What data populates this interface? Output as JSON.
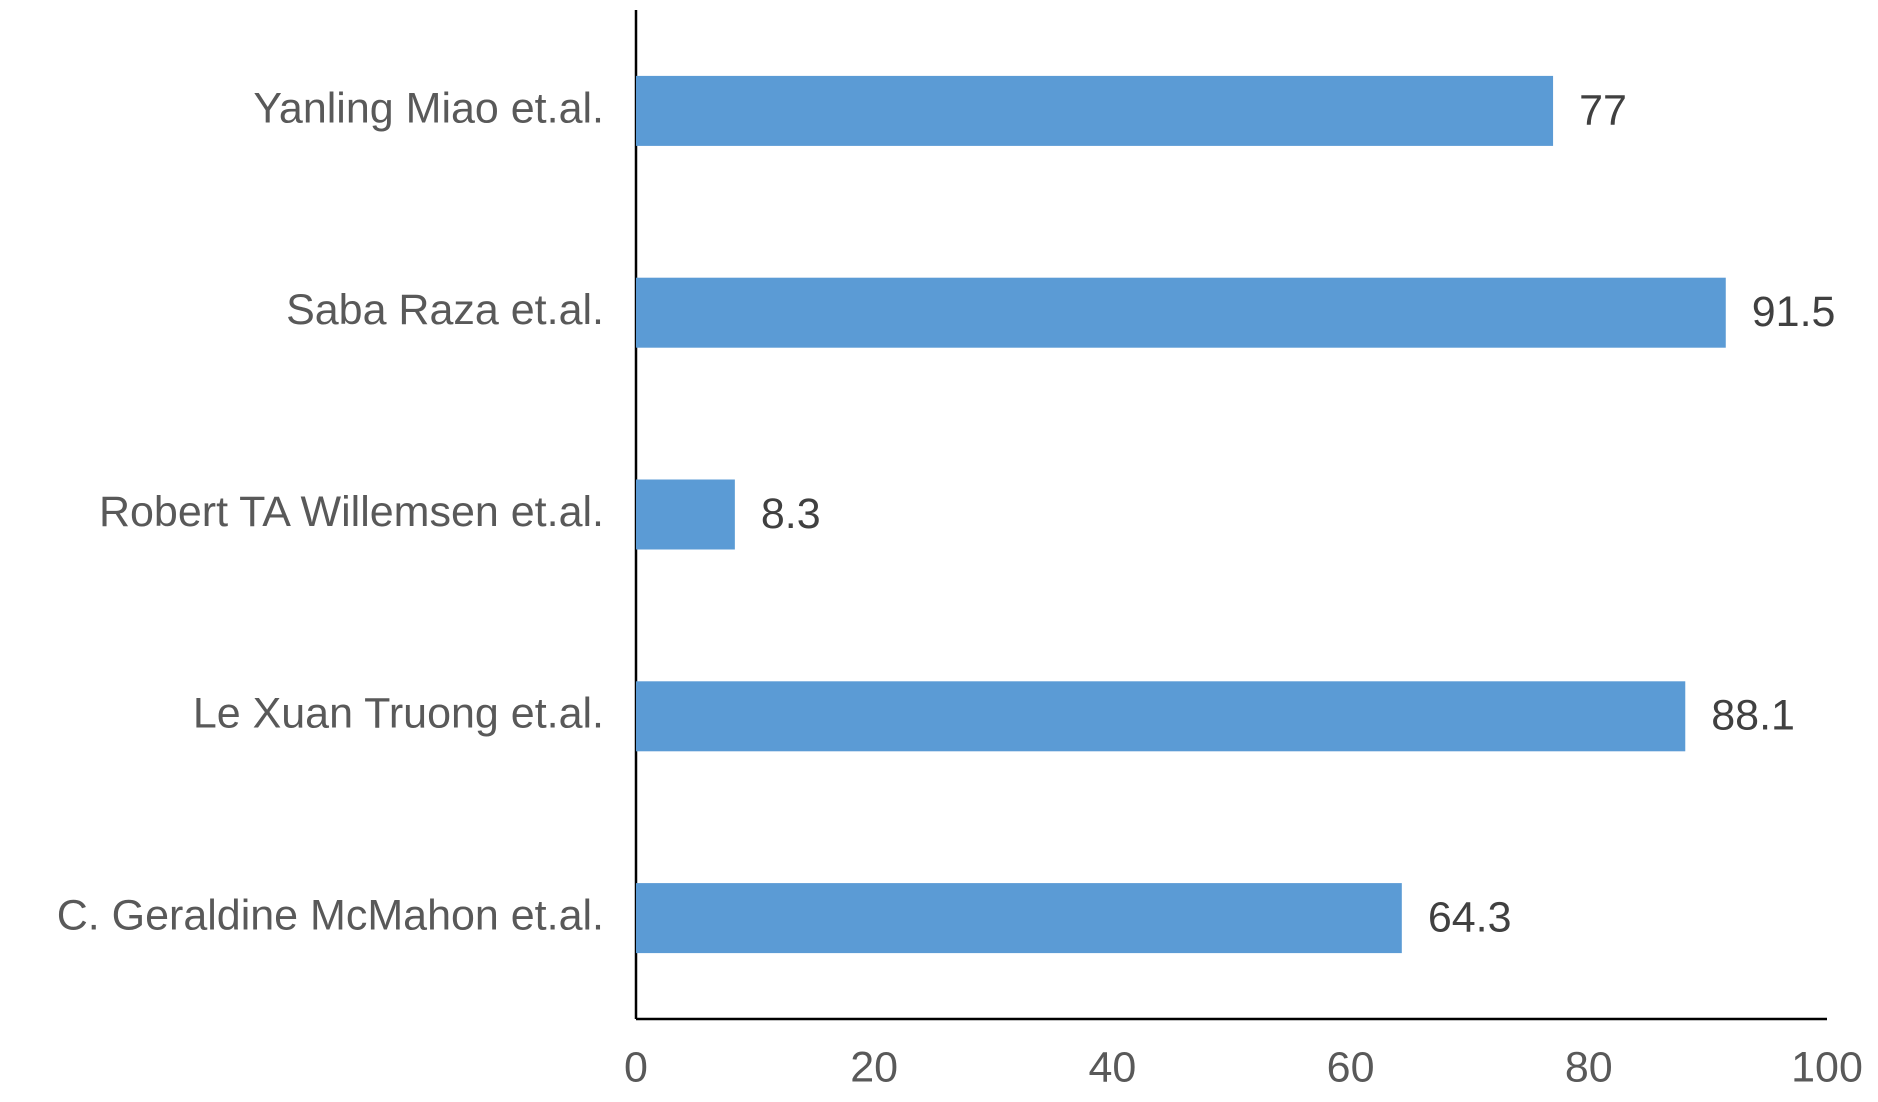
{
  "chart_data": {
    "type": "hbar",
    "categories": [
      "Yanling Miao et.al.",
      "Saba Raza et.al.",
      "Robert TA Willemsen et.al.",
      "Le Xuan Truong et.al.",
      "C. Geraldine McMahon et.al."
    ],
    "values": [
      77,
      91.5,
      8.3,
      88.1,
      64.3
    ],
    "color": "#5b9bd5",
    "xlim": [
      0,
      100
    ],
    "xticks": [
      0,
      20,
      40,
      60,
      80,
      100
    ],
    "grid": false
  }
}
